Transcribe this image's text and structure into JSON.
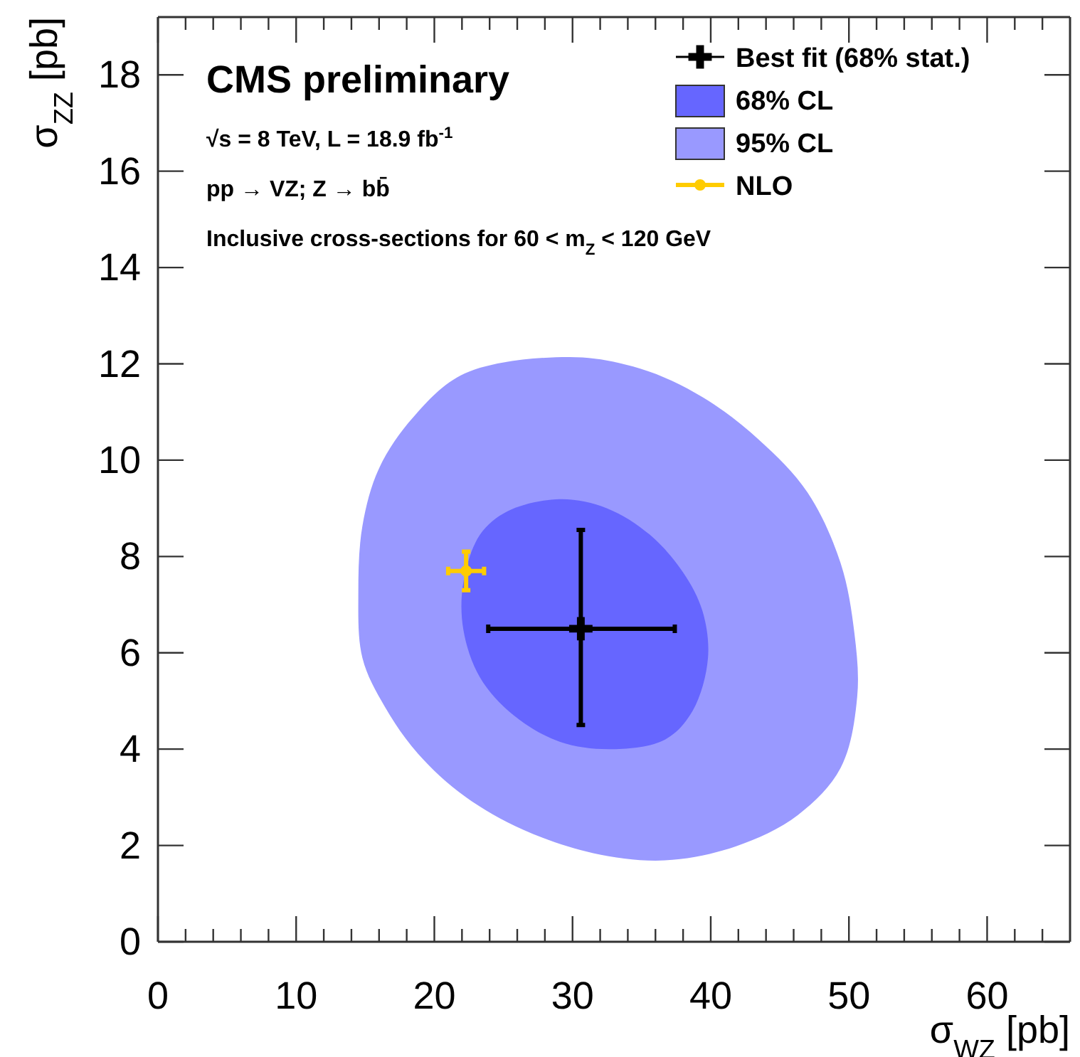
{
  "chart_data": {
    "type": "scatter",
    "title": "CMS preliminary",
    "annotations": [
      "√s = 8 TeV, L = 18.9 fb$^{-1}$",
      "pp → VZ; Z → bb̄",
      "Inclusive cross-sections for 60 < m$_{Z}$ < 120 GeV"
    ],
    "xlabel": "σ$_{WZ}$ [pb]",
    "ylabel": "σ$_{ZZ}$ [pb]",
    "xlim": [
      0,
      66
    ],
    "ylim": [
      0,
      19.2
    ],
    "xticks": [
      0,
      {
        "value": 2,
        "label": null
      },
      {
        "value": 4,
        "label": null
      },
      {
        "value": 6,
        "label": null
      },
      {
        "value": 8,
        "label": null
      },
      10,
      {
        "value": 12,
        "label": null
      },
      {
        "value": 14,
        "label": null
      },
      {
        "value": 16,
        "label": null
      },
      {
        "value": 18,
        "label": null
      },
      20,
      {
        "value": 22,
        "label": null
      },
      {
        "value": 24,
        "label": null
      },
      {
        "value": 26,
        "label": null
      },
      {
        "value": 28,
        "label": null
      },
      30,
      {
        "value": 32,
        "label": null
      },
      {
        "value": 34,
        "label": null
      },
      {
        "value": 36,
        "label": null
      },
      {
        "value": 38,
        "label": null
      },
      40,
      {
        "value": 42,
        "label": null
      },
      {
        "value": 44,
        "label": null
      },
      {
        "value": 46,
        "label": null
      },
      {
        "value": 48,
        "label": null
      },
      50,
      {
        "value": 52,
        "label": null
      },
      {
        "value": 54,
        "label": null
      },
      {
        "value": 56,
        "label": null
      },
      {
        "value": 58,
        "label": null
      },
      60,
      {
        "value": 62,
        "label": null
      },
      {
        "value": 64,
        "label": null
      }
    ],
    "yticks": [
      0,
      2,
      4,
      6,
      8,
      10,
      12,
      14,
      16,
      18
    ],
    "grid": false,
    "legend": "top right",
    "series": [
      {
        "name": "Best fit (68% stat.)",
        "marker": "cross",
        "color": "#000000",
        "x": [
          30.6
        ],
        "values": [
          6.5
        ],
        "xerrors": [
          [
            23.9,
            37.4
          ]
        ],
        "errors": [
          [
            4.5,
            8.55
          ]
        ]
      },
      {
        "name": "68% CL",
        "type": "area",
        "color": "#6666ff",
        "x": [
          29.1,
          25.3,
          23.3,
          22.1,
          22.1,
          23.3,
          25.7,
          29.1,
          32.9,
          36.7,
          38.7,
          39.8,
          39.4,
          38.0,
          35.6,
          32.5
        ],
        "values": [
          9.19,
          8.94,
          8.45,
          7.46,
          6.48,
          5.49,
          4.71,
          4.15,
          4.0,
          4.2,
          4.8,
          5.89,
          6.87,
          7.67,
          8.45,
          9.0
        ]
      },
      {
        "name": "95% CL",
        "type": "area",
        "color": "#9999ff",
        "x": [
          29.8,
          22.2,
          18.5,
          16.0,
          14.8,
          14.5,
          14.8,
          16.4,
          18.8,
          22.2,
          26.4,
          31.5,
          36.7,
          41.8,
          46.3,
          49.4,
          50.6,
          50.4,
          49.4,
          47.0,
          43.5,
          39.4,
          34.9
        ],
        "values": [
          12.14,
          11.8,
          10.9,
          9.83,
          8.64,
          7.26,
          5.89,
          4.89,
          3.91,
          3.02,
          2.33,
          1.84,
          1.69,
          1.98,
          2.63,
          3.61,
          5.09,
          6.4,
          7.86,
          9.33,
          10.42,
          11.31,
          11.9
        ]
      },
      {
        "name": "NLO",
        "marker": "circle",
        "color": "#ffcc00",
        "x": [
          22.3
        ],
        "values": [
          7.7
        ],
        "xerrors": [
          [
            21.0,
            23.6
          ]
        ],
        "errors": [
          [
            7.3,
            8.1
          ]
        ]
      }
    ]
  }
}
